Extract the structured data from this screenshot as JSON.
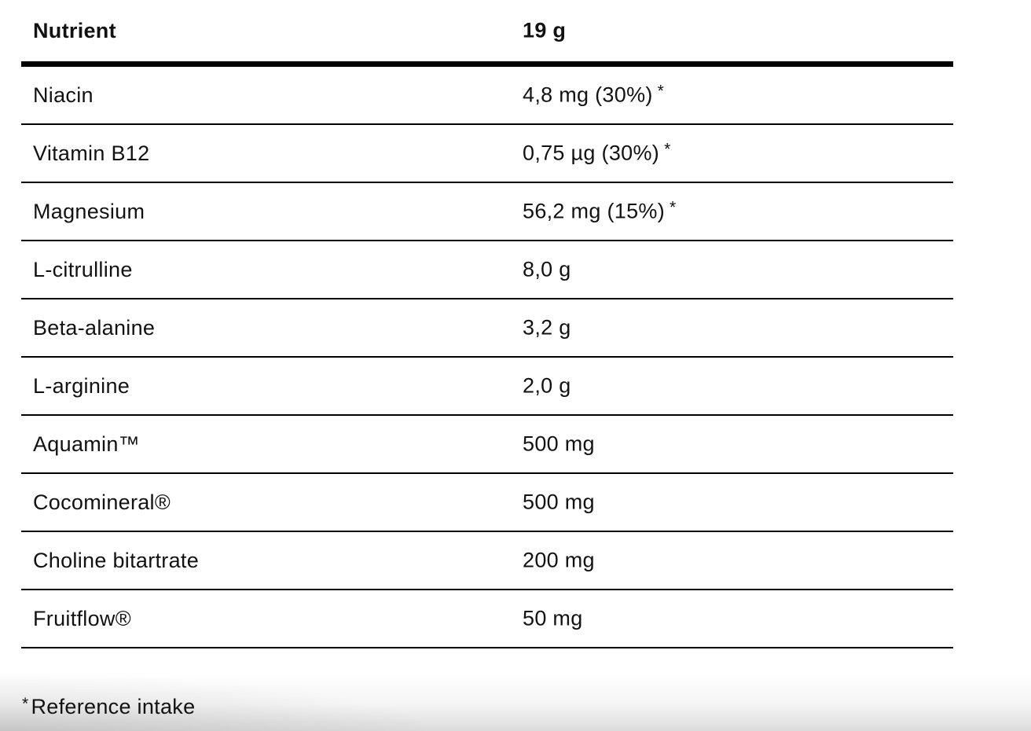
{
  "table": {
    "header": {
      "nutrient": "Nutrient",
      "amount": "19 g"
    },
    "rows": [
      {
        "name": "Niacin",
        "value": "4,8 mg (30%)",
        "star": "*"
      },
      {
        "name": "Vitamin B12",
        "value": "0,75 µg (30%)",
        "star": "*"
      },
      {
        "name": "Magnesium",
        "value": "56,2 mg (15%)",
        "star": "*"
      },
      {
        "name": "L-citrulline",
        "value": "8,0 g"
      },
      {
        "name": "Beta-alanine",
        "value": "3,2 g"
      },
      {
        "name": "L-arginine",
        "value": "2,0 g"
      },
      {
        "name": "Aquamin™",
        "value": "500 mg"
      },
      {
        "name": "Cocomineral®",
        "value": "500 mg"
      },
      {
        "name": "Choline bitartrate",
        "value": "200 mg"
      },
      {
        "name": "Fruitflow®",
        "value": "50 mg"
      }
    ],
    "footnote": {
      "marker": "*",
      "text": "Reference intake"
    }
  },
  "colors": {
    "text": "#121212",
    "line": "#000000",
    "background": "#ffffff"
  },
  "chart_data": {
    "type": "table",
    "title": "Nutrient content per 19 g serving",
    "columns": [
      "Nutrient",
      "19 g"
    ],
    "rows": [
      [
        "Niacin",
        "4,8 mg (30%)*"
      ],
      [
        "Vitamin B12",
        "0,75 µg (30%)*"
      ],
      [
        "Magnesium",
        "56,2 mg (15%)*"
      ],
      [
        "L-citrulline",
        "8,0 g"
      ],
      [
        "Beta-alanine",
        "3,2 g"
      ],
      [
        "L-arginine",
        "2,0 g"
      ],
      [
        "Aquamin™",
        "500 mg"
      ],
      [
        "Cocomineral®",
        "500 mg"
      ],
      [
        "Choline bitartrate",
        "200 mg"
      ],
      [
        "Fruitflow®",
        "50 mg"
      ]
    ],
    "annotations": [
      "*Reference intake"
    ]
  }
}
